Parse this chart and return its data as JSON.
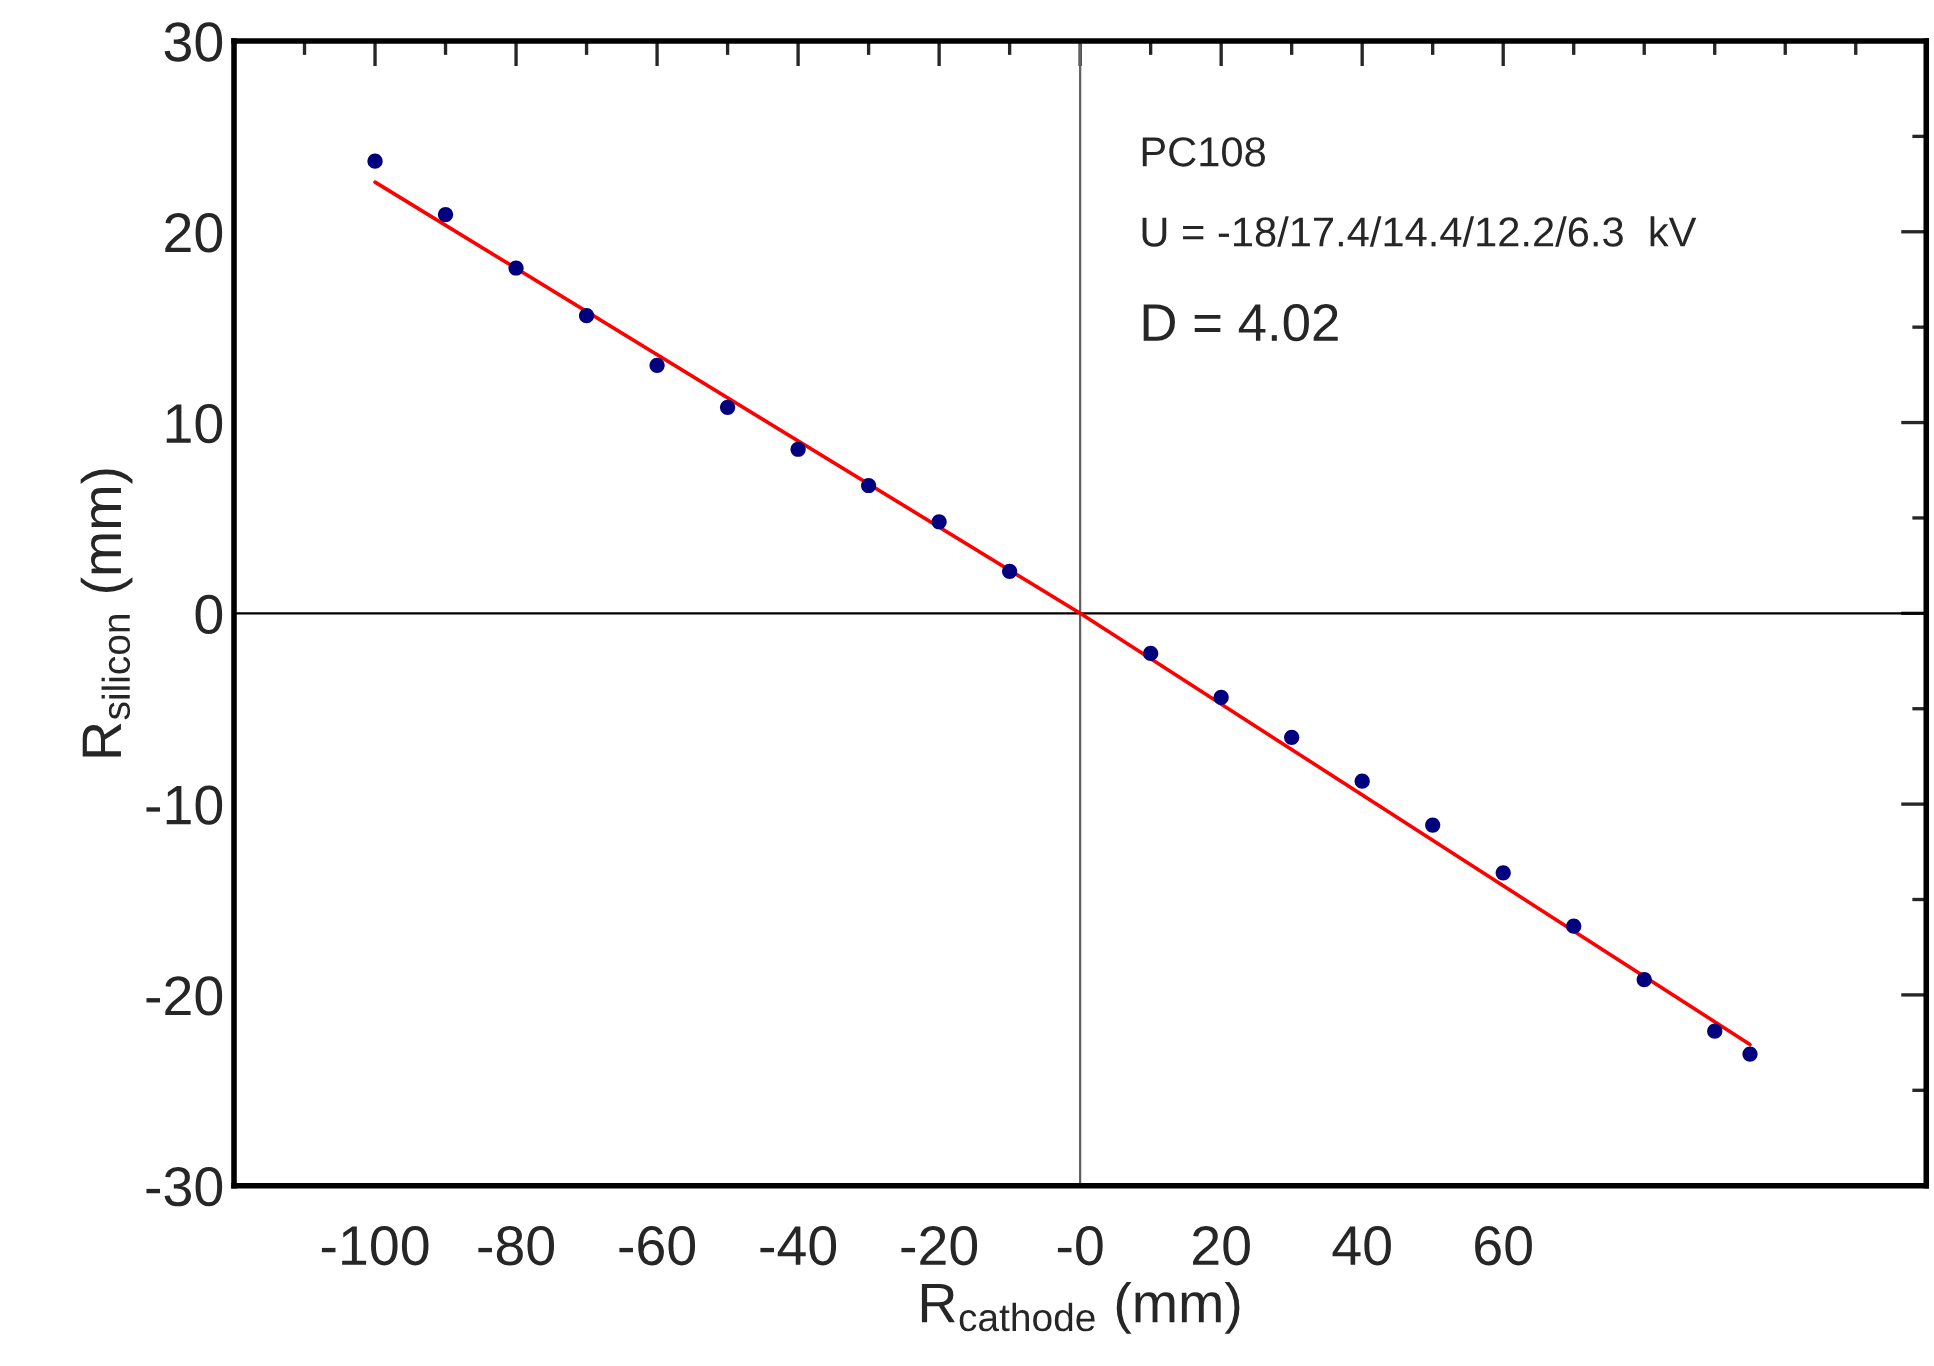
{
  "chart_data": {
    "type": "scatter",
    "xlabel": "R$_{cathode}$ (mm)",
    "ylabel": "R$_{silicon}$ (mm)",
    "annotations": [
      "PC108",
      "U = -18/17.4/14.4/12.2/6.3  kV",
      "D = 4.02"
    ],
    "xlim": [
      -120,
      120
    ],
    "ylim": [
      -30,
      30
    ],
    "xticks": [
      {
        "value": -110,
        "label": null
      },
      -100,
      {
        "value": -90,
        "label": null
      },
      -80,
      {
        "value": -70,
        "label": null
      },
      -60,
      {
        "value": -50,
        "label": null
      },
      -40,
      {
        "value": -30,
        "label": null
      },
      -20,
      {
        "value": -10,
        "label": null
      },
      {
        "value": 0,
        "label": "-0"
      },
      {
        "value": 10,
        "label": null
      },
      20,
      {
        "value": 30,
        "label": null
      },
      40,
      {
        "value": 50,
        "label": null
      },
      60,
      {
        "value": 70,
        "label": null
      },
      {
        "value": 80,
        "label": null
      },
      {
        "value": 90,
        "label": null
      },
      {
        "value": 100,
        "label": null
      },
      {
        "value": 110,
        "label": null
      }
    ],
    "yticks": [
      -30,
      {
        "value": -25,
        "label": null
      },
      -20,
      {
        "value": -15,
        "label": null
      },
      -10,
      {
        "value": -5,
        "label": null
      },
      0,
      {
        "value": 5,
        "label": null
      },
      10,
      {
        "value": 15,
        "label": null
      },
      20,
      {
        "value": 25,
        "label": null
      },
      30
    ],
    "grid": false,
    "legend": false,
    "ref_lines": [
      {
        "axis": "x",
        "value": 0,
        "color": "#606060"
      },
      {
        "axis": "y",
        "value": 0,
        "color": "#000000"
      }
    ],
    "series": [
      {
        "color": "#00007f",
        "marker": "circle",
        "x": [
          -100,
          -90,
          -80,
          -70,
          -60,
          -50,
          -40,
          -30,
          -20,
          -10,
          10,
          20,
          30,
          40,
          50,
          60,
          70,
          80,
          90,
          95
        ],
        "values": [
          23.7,
          20.9,
          18.1,
          15.6,
          13.0,
          10.8,
          8.6,
          6.7,
          4.8,
          2.2,
          -2.1,
          -4.4,
          -6.5,
          -8.8,
          -11.1,
          -13.6,
          -16.4,
          -19.2,
          -21.9,
          -23.1
        ]
      },
      {
        "type": "line",
        "color": "#ff0000",
        "x": [
          -100,
          0,
          95
        ],
        "values": [
          22.6,
          0,
          -22.6
        ]
      }
    ]
  }
}
